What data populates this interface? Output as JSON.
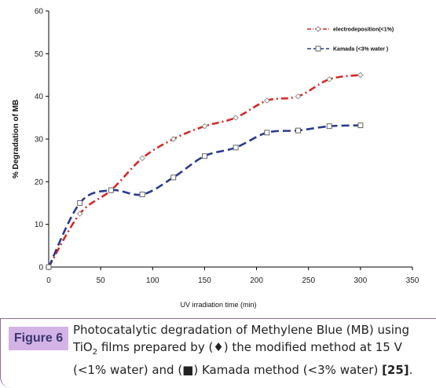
{
  "chart_data": {
    "type": "line",
    "title": "",
    "xlabel": "UV   irradiation time (min)",
    "ylabel": "% Degradation of MB",
    "xlim": [
      0,
      350
    ],
    "ylim": [
      0,
      60
    ],
    "xticks": [
      0,
      50,
      100,
      150,
      200,
      250,
      300,
      350
    ],
    "yticks": [
      0,
      10,
      20,
      30,
      40,
      50,
      60
    ],
    "grid": false,
    "legend_position": "top-right",
    "series": [
      {
        "name": "electrodeposition(<1%)",
        "marker": "diamond",
        "line_style": "dash-dot",
        "color": "#d42a2a",
        "x": [
          0,
          30,
          60,
          90,
          120,
          150,
          180,
          210,
          240,
          270,
          300
        ],
        "y": [
          0,
          12.5,
          18,
          25.5,
          30,
          33,
          35,
          39,
          40,
          44,
          45
        ]
      },
      {
        "name": "Kamada (<3% water )",
        "marker": "square",
        "line_style": "dashed",
        "color": "#2b3a8f",
        "x": [
          0,
          30,
          60,
          90,
          120,
          150,
          180,
          210,
          240,
          270,
          300
        ],
        "y": [
          0,
          15,
          18,
          17,
          21,
          26,
          28,
          31.5,
          32,
          33,
          33.2
        ]
      }
    ]
  },
  "caption": {
    "label": "Figure 6",
    "part1": "Photocatalytic degradation of Methylene Blue (MB) using TiO",
    "sub": "2",
    "part2": " films prepared by (♦) the modified method at 15 V (<1% water) and (■) Kamada method (<3% water) ",
    "ref": "[25]",
    "end": "."
  },
  "colors": {
    "caption_label_bg": "#d3b3e6",
    "caption_label_text": "#3a3570",
    "caption_border": "#8e6a9a"
  }
}
